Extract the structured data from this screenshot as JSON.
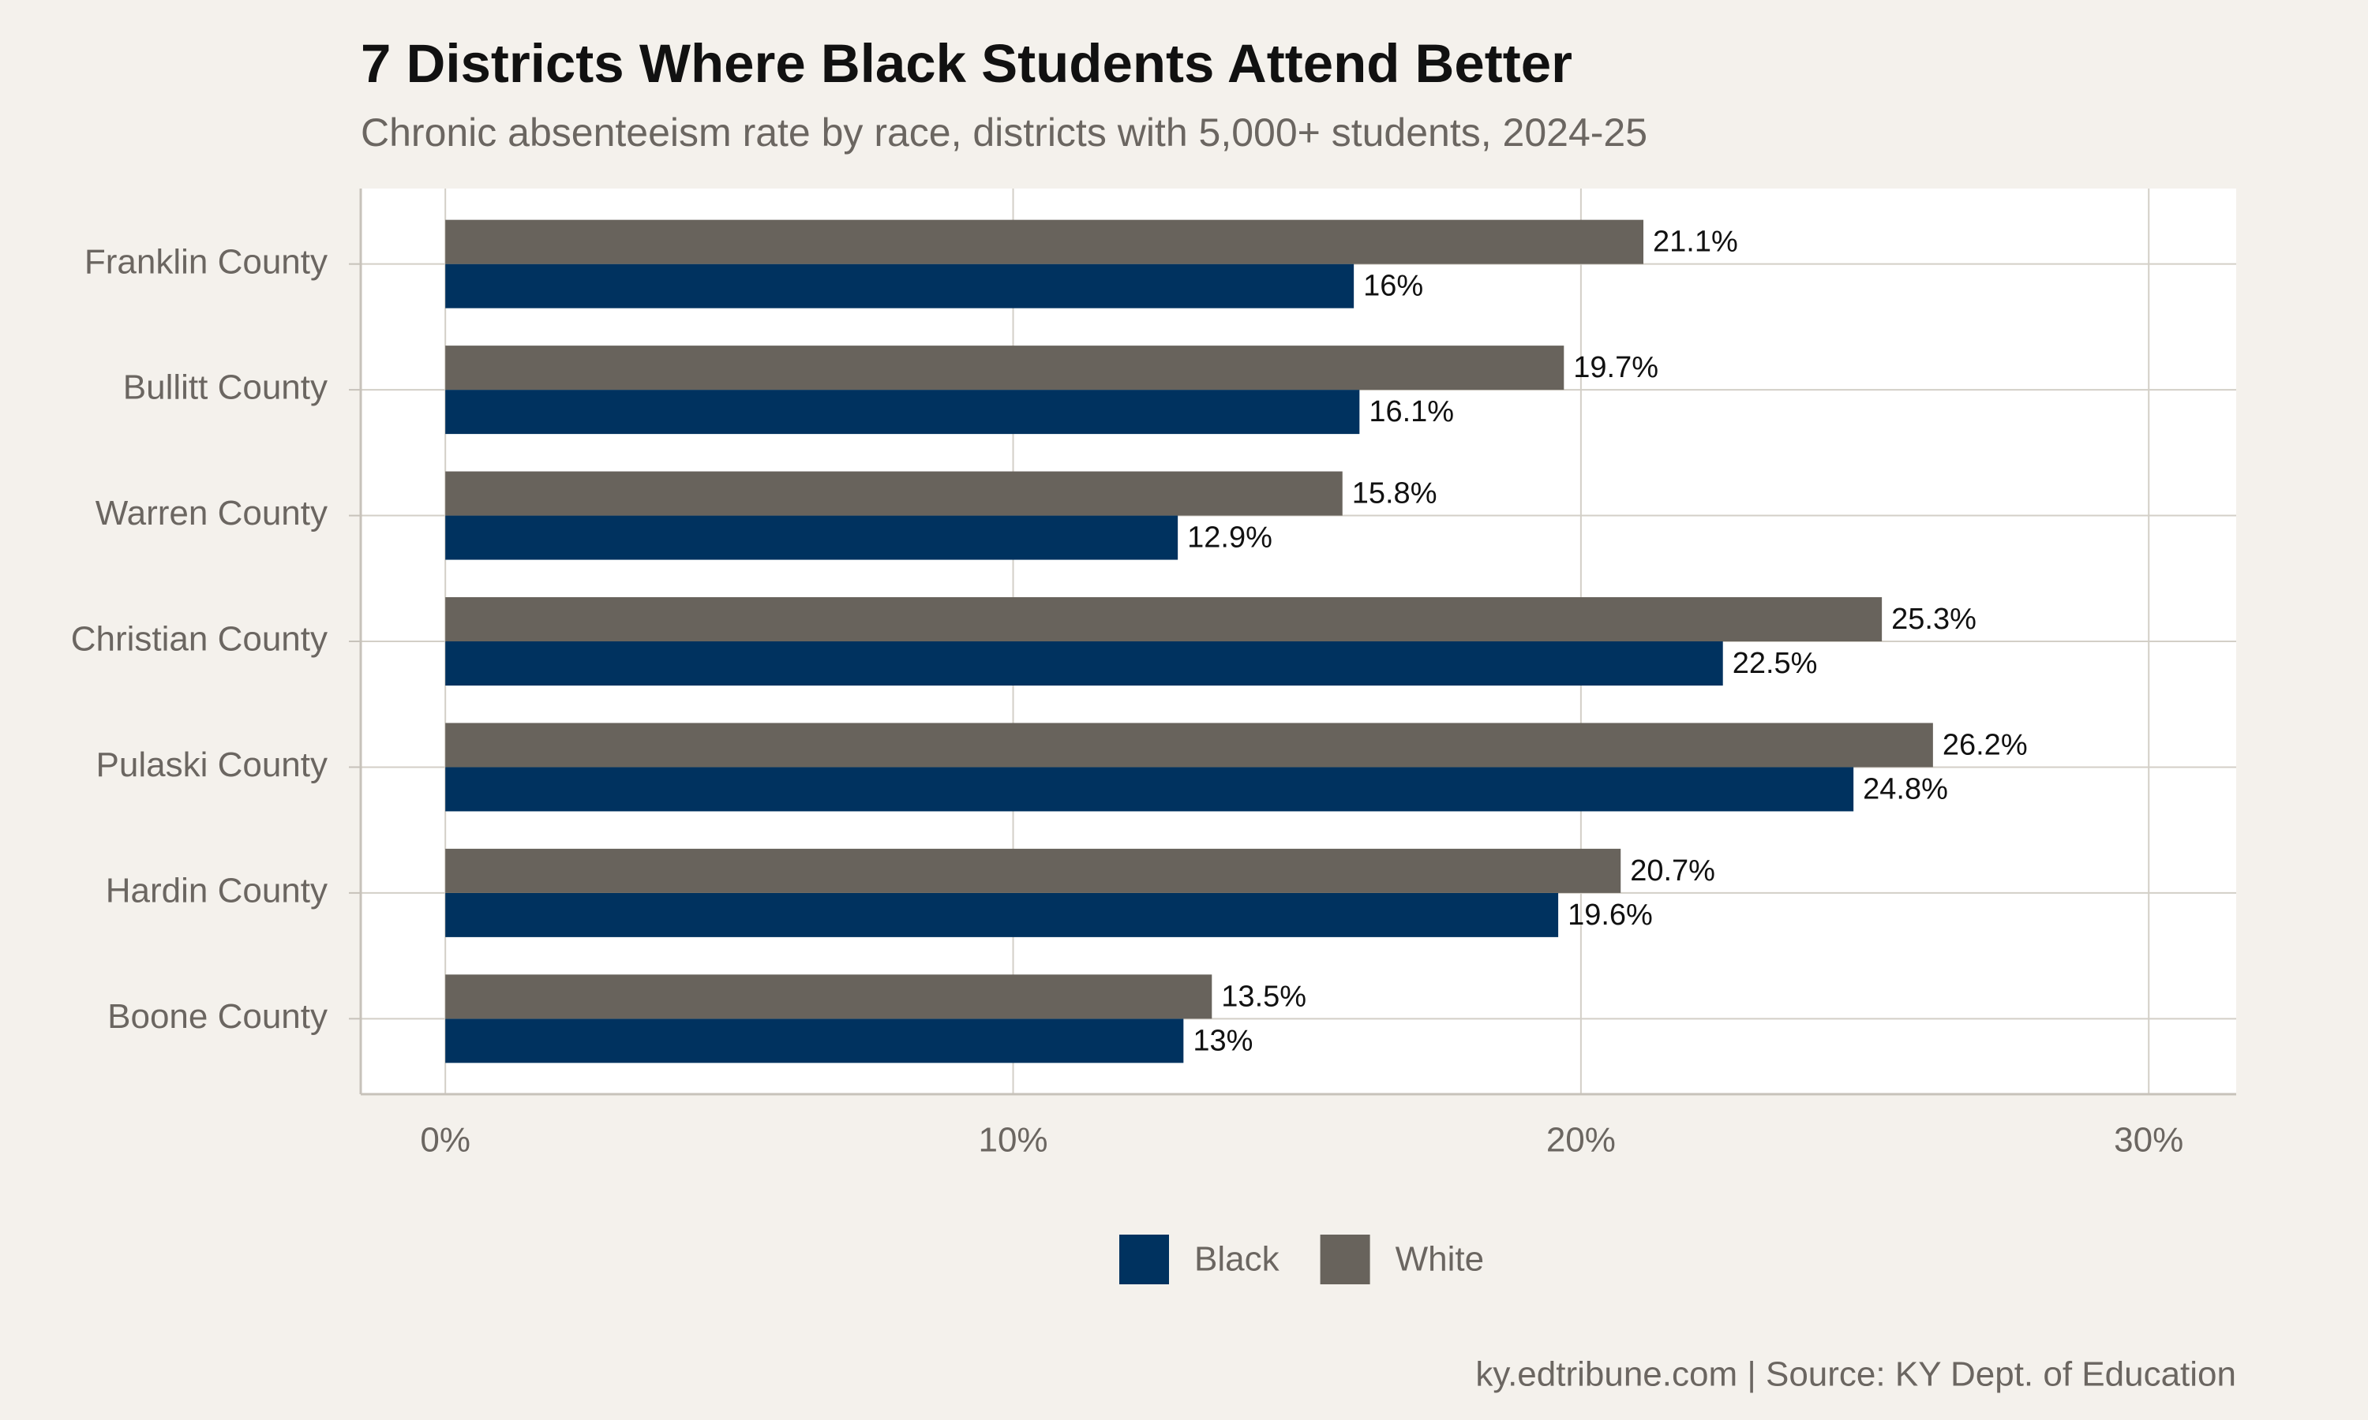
{
  "chart_data": {
    "type": "bar",
    "orientation": "horizontal",
    "title": "7 Districts Where Black Students Attend Better",
    "subtitle": "Chronic absenteeism rate by race, districts with 5,000+ students, 2024-25",
    "caption": "ky.edtribune.com | Source: KY Dept. of Education",
    "categories": [
      "Franklin County",
      "Bullitt County",
      "Warren County",
      "Christian County",
      "Pulaski County",
      "Hardin County",
      "Boone County"
    ],
    "series": [
      {
        "name": "Black",
        "color": "#00325f",
        "values": [
          16,
          16.1,
          12.9,
          22.5,
          24.8,
          19.6,
          13
        ],
        "value_labels": [
          "16%",
          "16.1%",
          "12.9%",
          "22.5%",
          "24.8%",
          "19.6%",
          "13%"
        ]
      },
      {
        "name": "White",
        "color": "#68635c",
        "values": [
          21.1,
          19.7,
          15.8,
          25.3,
          26.2,
          20.7,
          13.5
        ],
        "value_labels": [
          "21.1%",
          "19.7%",
          "15.8%",
          "25.3%",
          "26.2%",
          "20.7%",
          "13.5%"
        ]
      }
    ],
    "xlim": [
      -1.49,
      31.54
    ],
    "xticks": [
      {
        "value": 0,
        "label": "0%"
      },
      {
        "value": 10,
        "label": "10%"
      },
      {
        "value": 20,
        "label": "20%"
      },
      {
        "value": 30,
        "label": "30%"
      }
    ],
    "grid": true,
    "legend": "bottom"
  }
}
